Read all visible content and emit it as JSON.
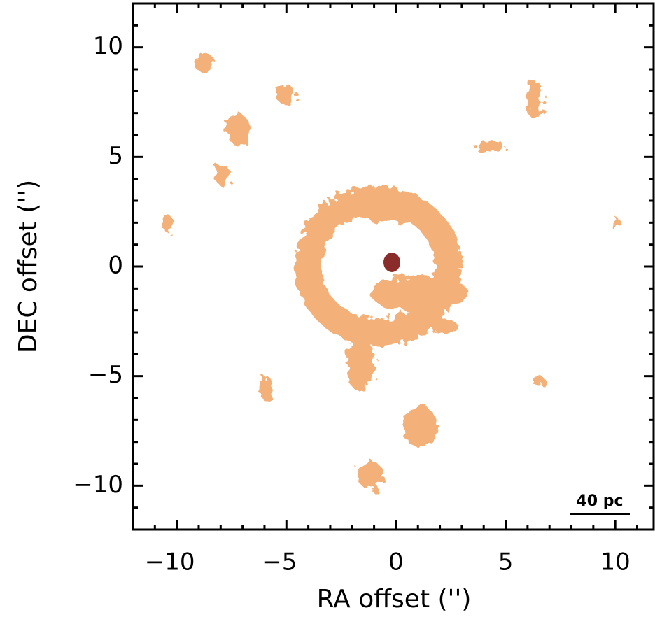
{
  "chart_data": {
    "type": "image",
    "xlabel": "RA offset ('')",
    "ylabel": "DEC offset ('')",
    "annotation": "40 pc",
    "xlim": [
      -12,
      11.75
    ],
    "ylim": [
      -12,
      12
    ],
    "xticks": [
      {
        "value": -10,
        "label": "−10"
      },
      {
        "value": -5,
        "label": "−5"
      },
      0,
      5,
      10
    ],
    "yticks": [
      {
        "value": -10,
        "label": "−10"
      },
      {
        "value": -5,
        "label": "−5"
      },
      0,
      5,
      10
    ],
    "xminor_ticks": [
      -11,
      -9,
      -8,
      -7,
      -6,
      -4,
      -3,
      -2,
      -1,
      1,
      2,
      3,
      4,
      6,
      7,
      8,
      9,
      11
    ],
    "yminor_ticks": [
      -11,
      -9,
      -8,
      -7,
      -6,
      -4,
      -3,
      -2,
      -1,
      1,
      2,
      3,
      4,
      6,
      7,
      8,
      9,
      11
    ],
    "color": "#f2a86a"
  }
}
